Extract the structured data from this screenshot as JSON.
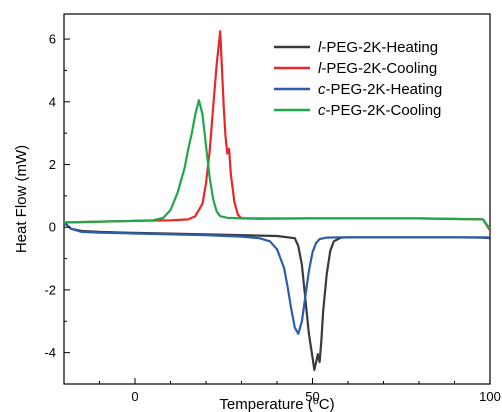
{
  "chart_data": {
    "type": "line",
    "xlabel": "Temperature (⁰C)",
    "ylabel": "Heat Flow (mW)",
    "xlim": [
      -20,
      100
    ],
    "ylim": [
      -5,
      6.8
    ],
    "x_ticks": [
      0,
      50,
      100
    ],
    "y_ticks": [
      -4,
      -2,
      0,
      2,
      4,
      6
    ],
    "grid": false,
    "legend_position": "top-right",
    "series": [
      {
        "name": "l-PEG-2K-Heating",
        "name_prefix": "l",
        "name_rest": "-PEG-2K-Heating",
        "color": "#3a3a3a",
        "x": [
          -20,
          -18,
          -15,
          -10,
          0,
          20,
          40,
          45,
          46,
          47,
          48,
          49,
          50,
          50.5,
          51,
          51.5,
          52,
          52.5,
          53,
          54,
          55,
          56,
          58,
          60,
          70,
          80,
          90,
          98,
          100
        ],
        "y": [
          0.15,
          -0.05,
          -0.12,
          -0.15,
          -0.18,
          -0.23,
          -0.28,
          -0.35,
          -0.6,
          -1.2,
          -2.3,
          -3.4,
          -4.15,
          -4.55,
          -4.3,
          -4.05,
          -4.3,
          -3.6,
          -2.7,
          -1.5,
          -0.75,
          -0.45,
          -0.33,
          -0.32,
          -0.32,
          -0.32,
          -0.32,
          -0.33,
          -0.35
        ]
      },
      {
        "name": "l-PEG-2K-Cooling",
        "name_prefix": "l",
        "name_rest": "-PEG-2K-Cooling",
        "color": "#e8262b",
        "x": [
          -20,
          -10,
          0,
          10,
          15,
          17,
          19,
          20,
          21,
          22,
          23,
          24,
          25,
          25.5,
          26,
          26.5,
          27,
          28,
          29,
          30,
          35,
          50,
          80,
          98,
          100
        ],
        "y": [
          0.15,
          0.18,
          0.2,
          0.22,
          0.25,
          0.35,
          0.75,
          1.4,
          2.4,
          3.8,
          5.2,
          6.25,
          3.8,
          2.9,
          2.35,
          2.5,
          1.7,
          0.8,
          0.4,
          0.28,
          0.27,
          0.28,
          0.28,
          0.25,
          -0.1
        ]
      },
      {
        "name": "c-PEG-2K-Heating",
        "name_prefix": "c",
        "name_rest": "-PEG-2K-Heating",
        "color": "#2a5db0",
        "x": [
          -20,
          -18,
          -15,
          -10,
          0,
          20,
          30,
          35,
          38,
          40,
          42,
          43,
          44,
          45,
          46,
          47,
          48,
          49,
          50,
          51,
          52,
          54,
          58,
          70,
          90,
          100
        ],
        "y": [
          0.15,
          -0.05,
          -0.15,
          -0.17,
          -0.2,
          -0.25,
          -0.3,
          -0.35,
          -0.45,
          -0.7,
          -1.3,
          -1.9,
          -2.6,
          -3.2,
          -3.4,
          -3.0,
          -2.2,
          -1.4,
          -0.8,
          -0.5,
          -0.38,
          -0.33,
          -0.32,
          -0.32,
          -0.32,
          -0.32
        ]
      },
      {
        "name": "c-PEG-2K-Cooling",
        "name_prefix": "c",
        "name_rest": "-PEG-2K-Cooling",
        "color": "#1fa84a",
        "x": [
          -20,
          -10,
          0,
          5,
          8,
          10,
          12,
          14,
          15,
          16,
          17,
          18,
          19,
          20,
          21,
          22,
          23,
          24,
          26,
          30,
          40,
          60,
          80,
          98,
          100
        ],
        "y": [
          0.15,
          0.18,
          0.2,
          0.22,
          0.3,
          0.55,
          1.1,
          1.9,
          2.5,
          3.0,
          3.6,
          4.05,
          3.6,
          2.6,
          1.6,
          0.9,
          0.5,
          0.35,
          0.3,
          0.28,
          0.28,
          0.28,
          0.28,
          0.25,
          -0.05
        ]
      }
    ]
  }
}
